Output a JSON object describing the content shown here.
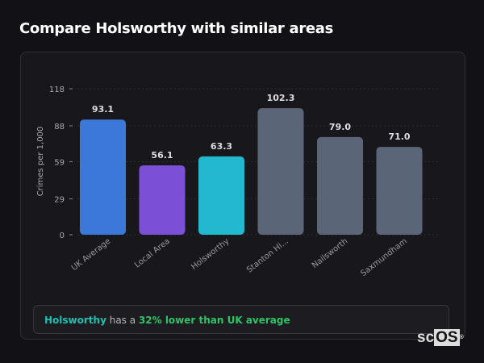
{
  "title": "Compare Holsworthy with similar areas",
  "chart_data": {
    "type": "bar",
    "categories": [
      "UK Average",
      "Local Area",
      "Holsworthy",
      "Stanton Hi...",
      "Nailsworth",
      "Saxmundham"
    ],
    "values": [
      93.1,
      56.1,
      63.3,
      102.3,
      79.0,
      71.0
    ],
    "value_labels": [
      "93.1",
      "56.1",
      "63.3",
      "102.3",
      "79.0",
      "71.0"
    ],
    "colors": [
      "#3b78d8",
      "#7b4fd6",
      "#22b8cf",
      "#5a6578",
      "#5a6578",
      "#5a6578"
    ],
    "ylabel": "Crimes per 1,000",
    "yticks": [
      0,
      29,
      59,
      88,
      118
    ],
    "ylim": [
      0,
      118
    ],
    "grid": true
  },
  "summary": {
    "place": "Holsworthy",
    "middle": " has a ",
    "comparison": "32% lower than UK average",
    "place_color": "#20c0b0",
    "comparison_color": "#2ec466"
  },
  "logo": {
    "text_a": "sc",
    "text_b": "OS",
    "mark": "®"
  }
}
